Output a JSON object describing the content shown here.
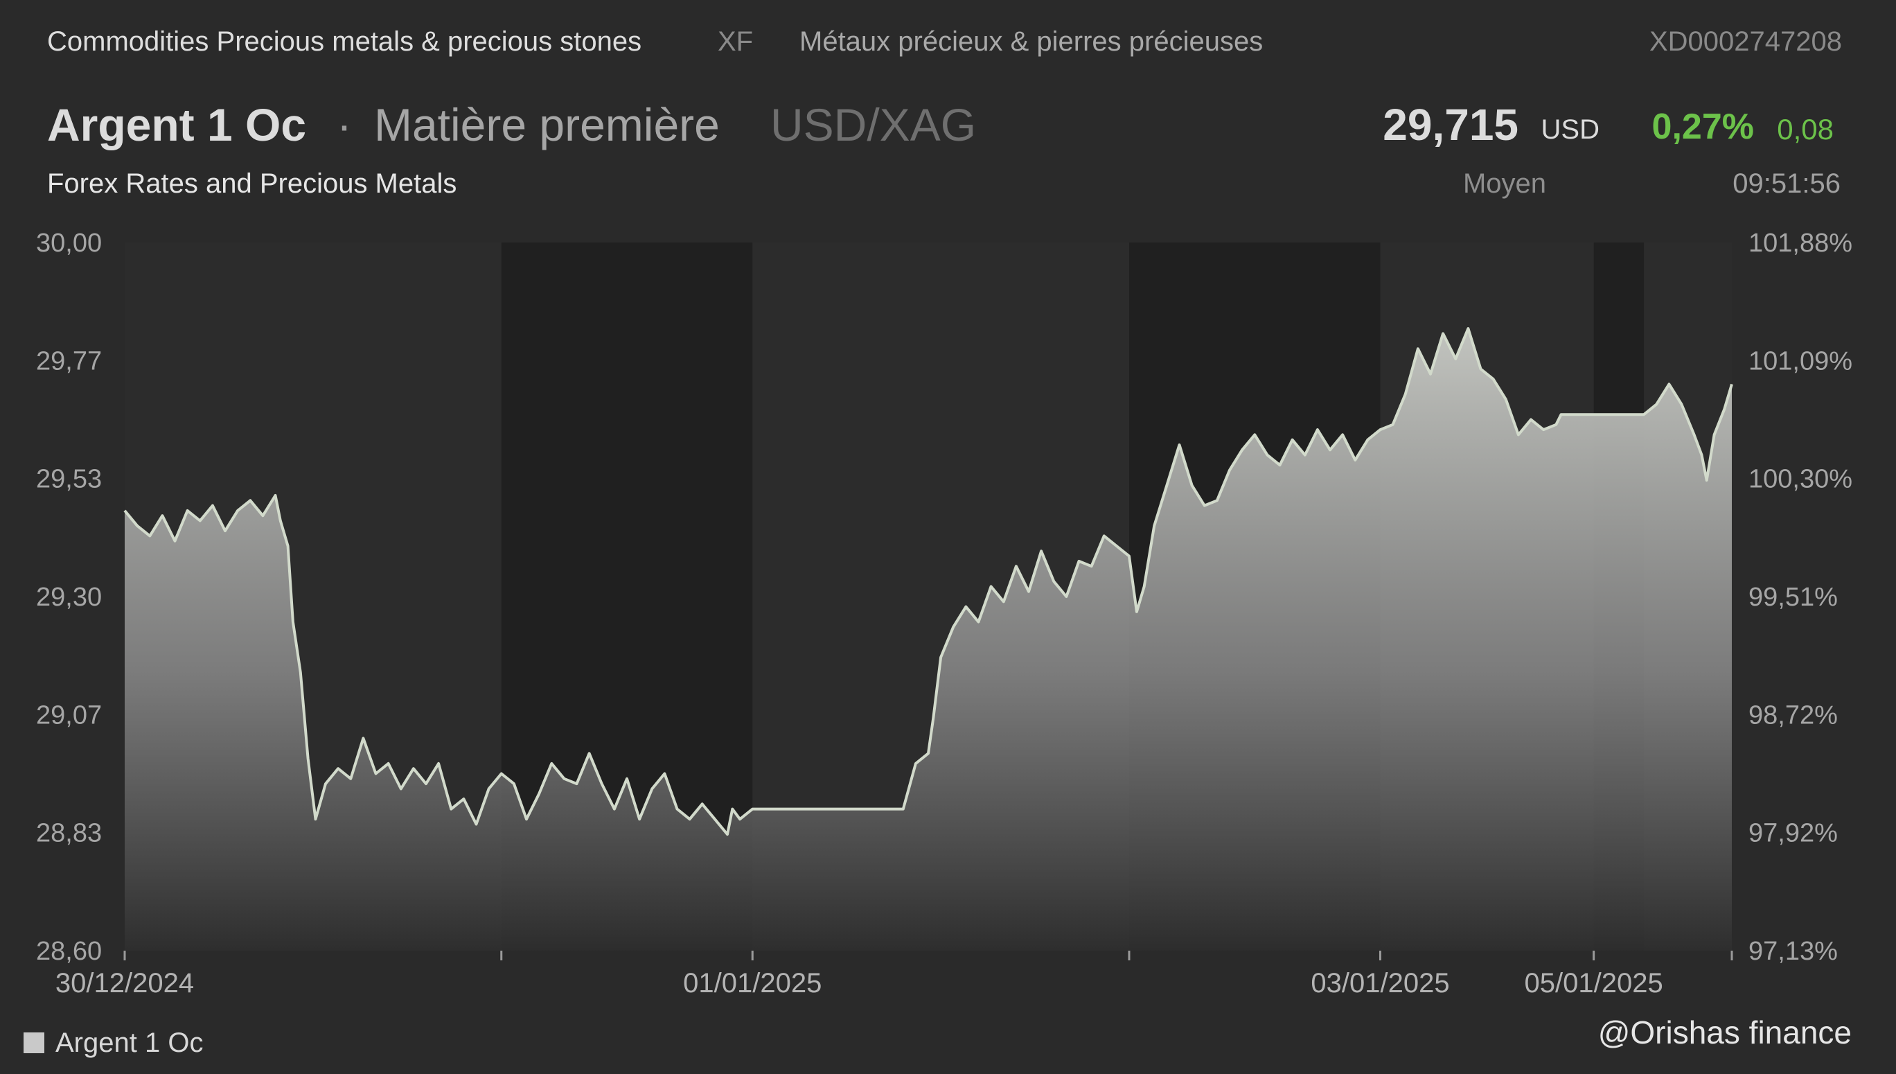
{
  "header": {
    "category": "Commodities Precious metals & precious stones",
    "exchange": "XF",
    "category_fr": "Métaux précieux & pierres précieuses",
    "isin": "XD0002747208"
  },
  "instrument": {
    "name": "Argent 1 Oc",
    "separator": "·",
    "type": "Matière première",
    "pair": "USD/XAG",
    "subtitle": "Forex Rates and Precious Metals"
  },
  "quote": {
    "price": "29,715",
    "currency": "USD",
    "change_pct": "0,27%",
    "change_abs": "0,08",
    "mode": "Moyen",
    "time": "09:51:56"
  },
  "colors": {
    "background": "#2a2a2a",
    "line": "#c8d0c4",
    "positive": "#6cc24a"
  },
  "chart_data": {
    "type": "area",
    "series": [
      {
        "name": "Argent 1 Oc"
      }
    ],
    "x_tick_labels": [
      "30/12/2024",
      "01/01/2025",
      "03/01/2025",
      "05/01/2025"
    ],
    "y_ticks_left": [
      "30,00",
      "29,77",
      "29,53",
      "29,30",
      "29,07",
      "28,83",
      "28,60"
    ],
    "y_ticks_right": [
      "101,88%",
      "101,09%",
      "100,30%",
      "99,51%",
      "98,72%",
      "97,92%",
      "97,13%"
    ],
    "ylim": [
      28.6,
      30.0
    ],
    "x_days": [
      0,
      1.5,
      2.5,
      4.0,
      5.0,
      5.85,
      6.4
    ],
    "weekend_shaded": [
      [
        1.5,
        2.5
      ],
      [
        4.0,
        5.0
      ],
      [
        5.85,
        6.05
      ]
    ],
    "points": [
      [
        0.0,
        29.47
      ],
      [
        0.05,
        29.44
      ],
      [
        0.1,
        29.42
      ],
      [
        0.15,
        29.46
      ],
      [
        0.2,
        29.41
      ],
      [
        0.25,
        29.47
      ],
      [
        0.3,
        29.45
      ],
      [
        0.35,
        29.48
      ],
      [
        0.4,
        29.43
      ],
      [
        0.45,
        29.47
      ],
      [
        0.5,
        29.49
      ],
      [
        0.55,
        29.46
      ],
      [
        0.6,
        29.5
      ],
      [
        0.62,
        29.45
      ],
      [
        0.65,
        29.4
      ],
      [
        0.67,
        29.25
      ],
      [
        0.7,
        29.15
      ],
      [
        0.73,
        28.98
      ],
      [
        0.76,
        28.86
      ],
      [
        0.8,
        28.93
      ],
      [
        0.85,
        28.96
      ],
      [
        0.9,
        28.94
      ],
      [
        0.95,
        29.02
      ],
      [
        1.0,
        28.95
      ],
      [
        1.05,
        28.97
      ],
      [
        1.1,
        28.92
      ],
      [
        1.15,
        28.96
      ],
      [
        1.2,
        28.93
      ],
      [
        1.25,
        28.97
      ],
      [
        1.3,
        28.88
      ],
      [
        1.35,
        28.9
      ],
      [
        1.4,
        28.85
      ],
      [
        1.45,
        28.92
      ],
      [
        1.5,
        28.95
      ],
      [
        1.55,
        28.93
      ],
      [
        1.6,
        28.86
      ],
      [
        1.65,
        28.91
      ],
      [
        1.7,
        28.97
      ],
      [
        1.75,
        28.94
      ],
      [
        1.8,
        28.93
      ],
      [
        1.85,
        28.99
      ],
      [
        1.9,
        28.93
      ],
      [
        1.95,
        28.88
      ],
      [
        2.0,
        28.94
      ],
      [
        2.05,
        28.86
      ],
      [
        2.1,
        28.92
      ],
      [
        2.15,
        28.95
      ],
      [
        2.2,
        28.88
      ],
      [
        2.25,
        28.86
      ],
      [
        2.3,
        28.89
      ],
      [
        2.35,
        28.86
      ],
      [
        2.4,
        28.83
      ],
      [
        2.42,
        28.88
      ],
      [
        2.45,
        28.86
      ],
      [
        2.5,
        28.88
      ],
      [
        3.1,
        28.88
      ],
      [
        3.15,
        28.97
      ],
      [
        3.2,
        28.99
      ],
      [
        3.22,
        29.06
      ],
      [
        3.25,
        29.18
      ],
      [
        3.3,
        29.24
      ],
      [
        3.35,
        29.28
      ],
      [
        3.4,
        29.25
      ],
      [
        3.45,
        29.32
      ],
      [
        3.5,
        29.29
      ],
      [
        3.55,
        29.36
      ],
      [
        3.6,
        29.31
      ],
      [
        3.65,
        29.39
      ],
      [
        3.7,
        29.33
      ],
      [
        3.75,
        29.3
      ],
      [
        3.8,
        29.37
      ],
      [
        3.85,
        29.36
      ],
      [
        3.9,
        29.42
      ],
      [
        3.95,
        29.4
      ],
      [
        4.0,
        29.38
      ],
      [
        4.03,
        29.27
      ],
      [
        4.06,
        29.32
      ],
      [
        4.1,
        29.44
      ],
      [
        4.15,
        29.52
      ],
      [
        4.2,
        29.6
      ],
      [
        4.25,
        29.52
      ],
      [
        4.3,
        29.48
      ],
      [
        4.35,
        29.49
      ],
      [
        4.4,
        29.55
      ],
      [
        4.45,
        29.59
      ],
      [
        4.5,
        29.62
      ],
      [
        4.55,
        29.58
      ],
      [
        4.6,
        29.56
      ],
      [
        4.65,
        29.61
      ],
      [
        4.7,
        29.58
      ],
      [
        4.75,
        29.63
      ],
      [
        4.8,
        29.59
      ],
      [
        4.85,
        29.62
      ],
      [
        4.9,
        29.57
      ],
      [
        4.95,
        29.61
      ],
      [
        5.0,
        29.63
      ],
      [
        5.05,
        29.64
      ],
      [
        5.1,
        29.7
      ],
      [
        5.15,
        29.79
      ],
      [
        5.2,
        29.74
      ],
      [
        5.25,
        29.82
      ],
      [
        5.3,
        29.77
      ],
      [
        5.35,
        29.83
      ],
      [
        5.4,
        29.75
      ],
      [
        5.45,
        29.73
      ],
      [
        5.5,
        29.69
      ],
      [
        5.55,
        29.62
      ],
      [
        5.6,
        29.65
      ],
      [
        5.65,
        29.63
      ],
      [
        5.7,
        29.64
      ],
      [
        5.72,
        29.66
      ],
      [
        5.75,
        29.66
      ],
      [
        6.05,
        29.66
      ],
      [
        6.1,
        29.68
      ],
      [
        6.15,
        29.72
      ],
      [
        6.2,
        29.68
      ],
      [
        6.25,
        29.62
      ],
      [
        6.28,
        29.58
      ],
      [
        6.3,
        29.53
      ],
      [
        6.33,
        29.62
      ],
      [
        6.37,
        29.67
      ],
      [
        6.4,
        29.72
      ]
    ]
  },
  "legend": {
    "label": "Argent 1 Oc"
  },
  "watermark": "@Orishas finance"
}
